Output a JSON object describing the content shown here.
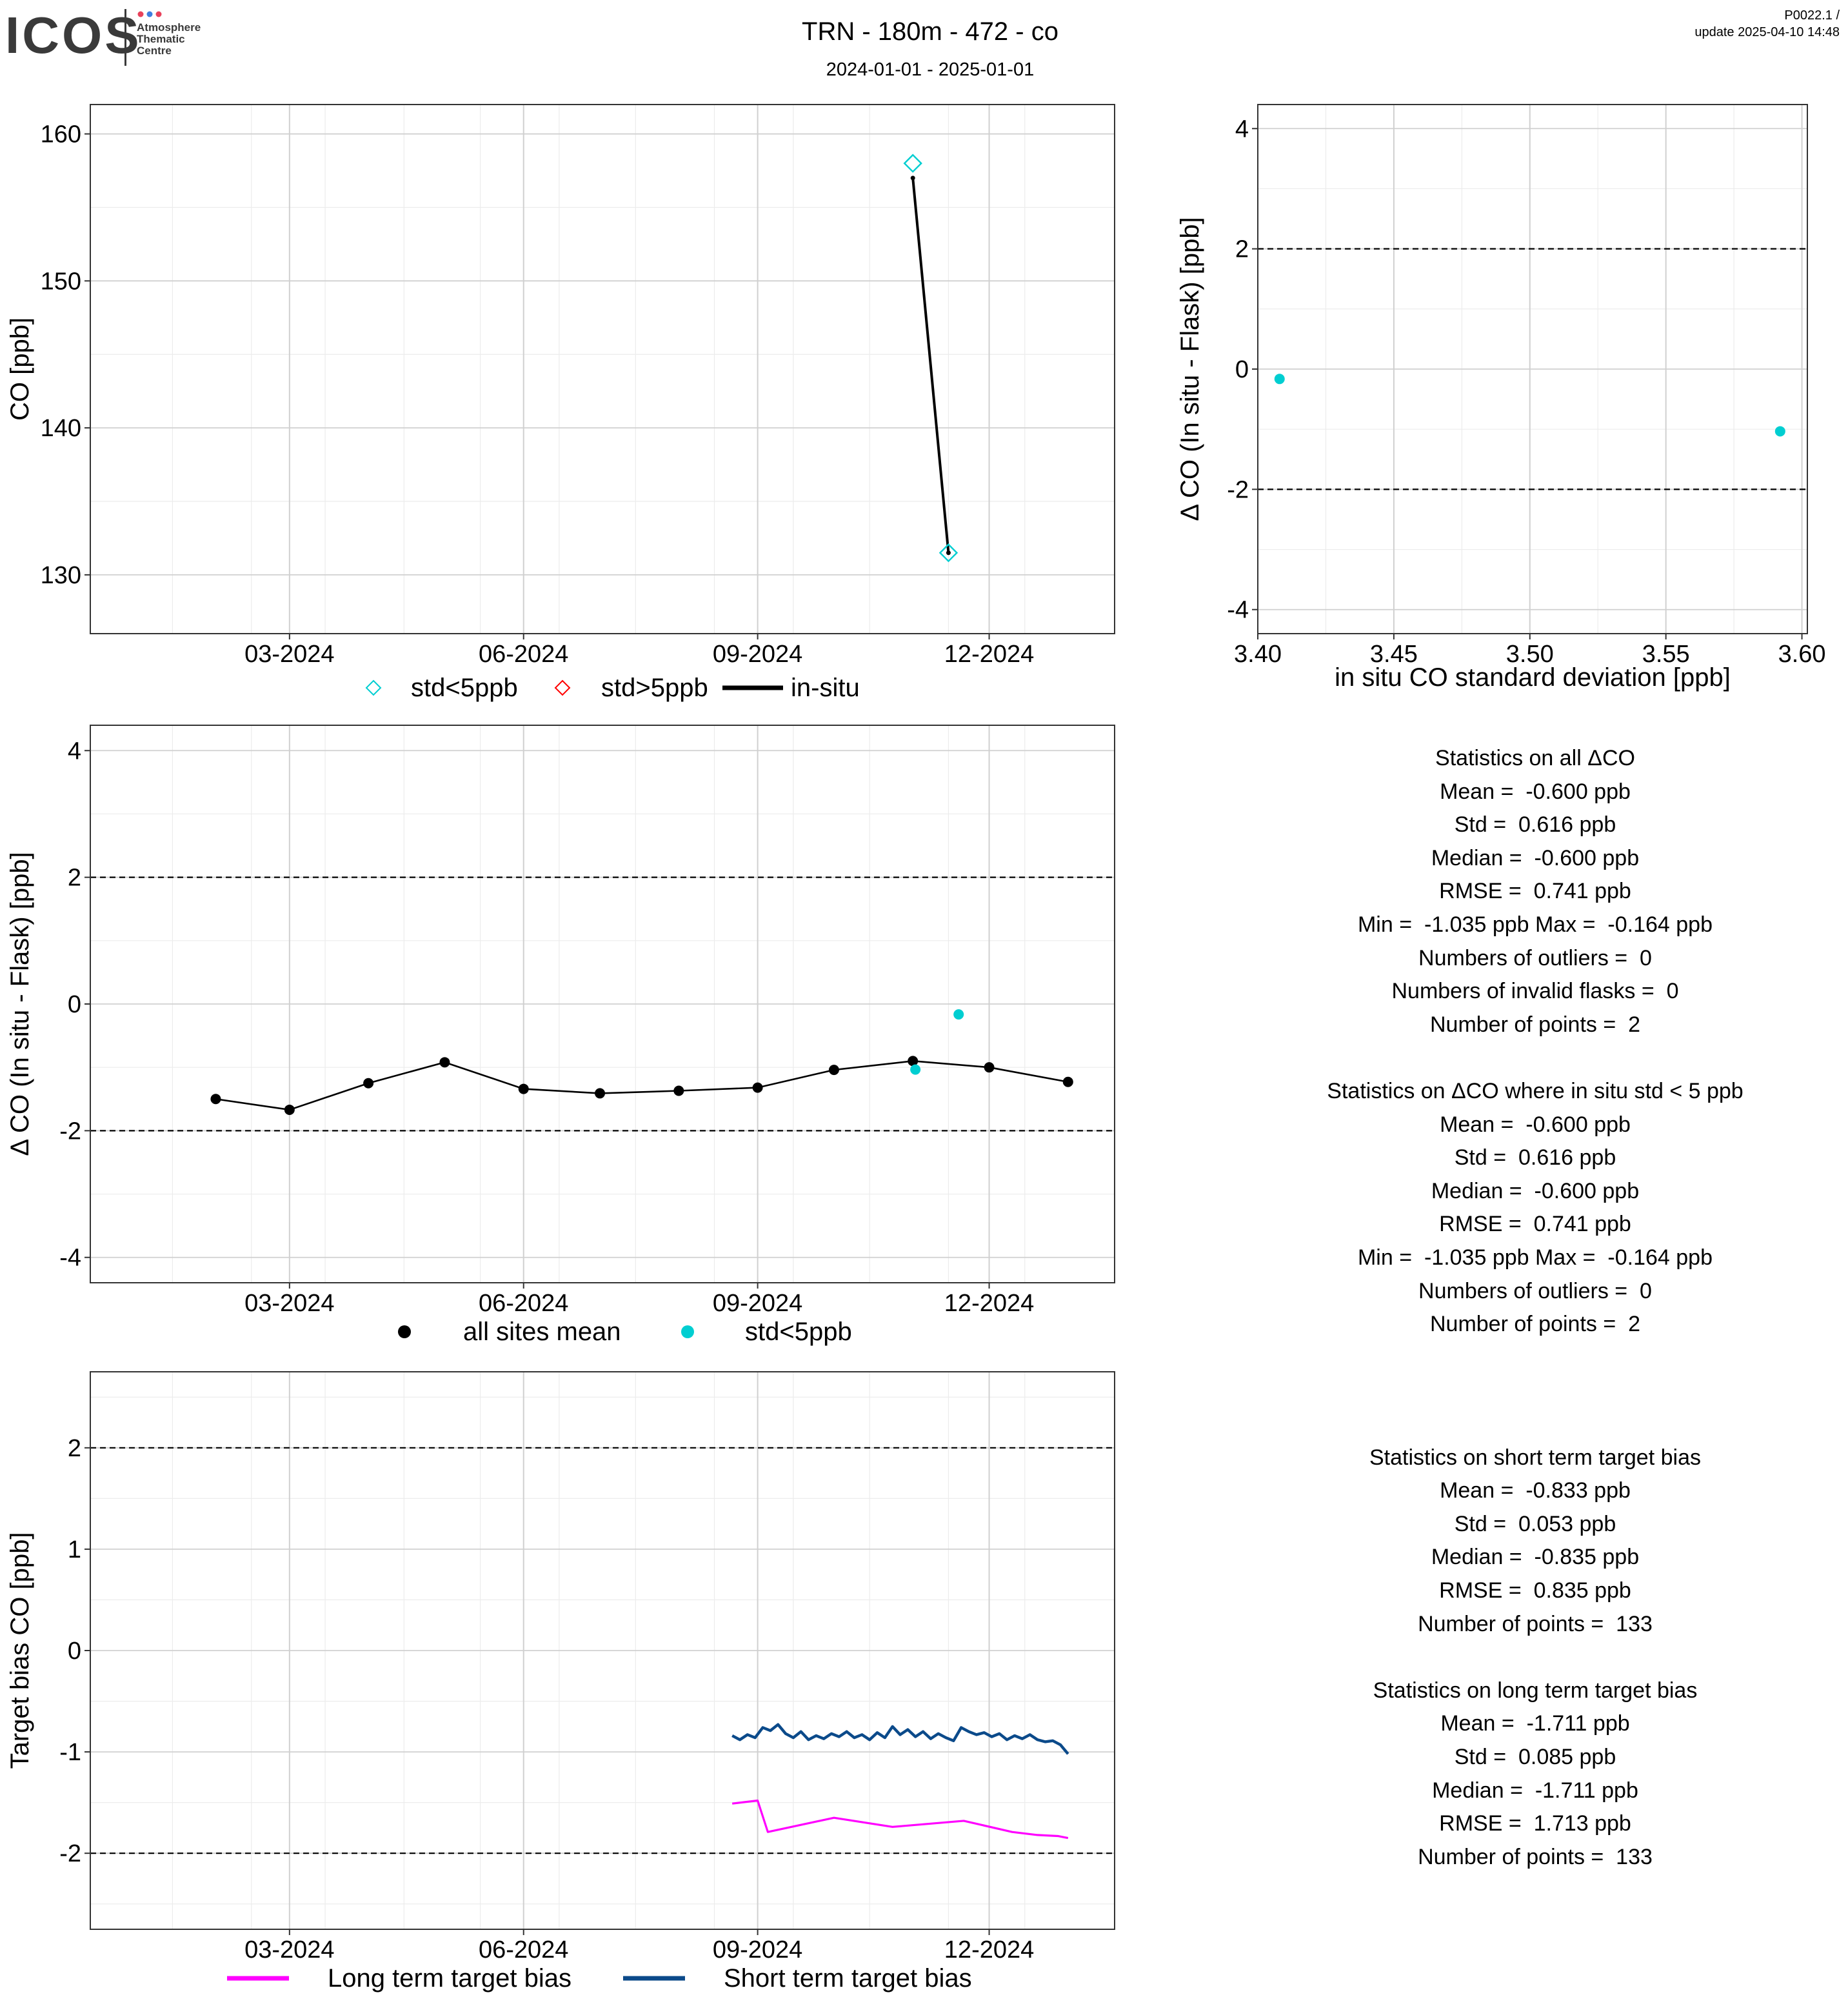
{
  "header": {
    "logo_word": "ICOS",
    "logo_sub": [
      "Atmosphere",
      "Thematic",
      "Centre"
    ],
    "title": "TRN - 180m - 472 - co",
    "subtitle": "2024-01-01 - 2025-01-01",
    "version": "P0022.1 /",
    "update": "update  2025-04-10 14:48"
  },
  "colors": {
    "insitu": "#000000",
    "std_lt5": "#00CED1",
    "std_gt5": "#FF0000",
    "long_term": "#FF00FF",
    "short_term": "#0B4A8A",
    "grid_major": "#d0d0d0",
    "grid_minor": "#ececec"
  },
  "chart_data": [
    {
      "id": "timeseries",
      "type": "line",
      "ylabel": "CO [ppb]",
      "xlabel": "",
      "ylim": [
        126,
        162
      ],
      "yticks": [
        130,
        140,
        150,
        160
      ],
      "x_range": [
        "2024-01-01",
        "2025-01-01"
      ],
      "x_ticks": [
        {
          "date": "2024-03-01",
          "label": "03-2024"
        },
        {
          "date": "2024-06-01",
          "label": "06-2024"
        },
        {
          "date": "2024-09-01",
          "label": "09-2024"
        },
        {
          "date": "2024-12-01",
          "label": "12-2024"
        }
      ],
      "grid": true,
      "legend_position": "bottom",
      "series": [
        {
          "name": "std<5ppb",
          "kind": "diamond",
          "color": "#00CED1",
          "points": [
            {
              "x": "2024-11-01",
              "y": 158.0
            },
            {
              "x": "2024-11-15",
              "y": 131.5
            }
          ]
        },
        {
          "name": "std>5ppb",
          "kind": "diamond",
          "color": "#FF0000",
          "points": []
        },
        {
          "name": "in-situ",
          "kind": "line",
          "color": "#000000",
          "points": [
            {
              "x": "2024-11-01",
              "y": 157.0
            },
            {
              "x": "2024-11-15",
              "y": 131.5
            }
          ]
        }
      ]
    },
    {
      "id": "scatter",
      "type": "scatter",
      "xlabel": "in situ CO standard deviation [ppb]",
      "ylabel": "Δ CO (In situ - Flask) [ppb]",
      "xlim": [
        3.4,
        3.602
      ],
      "ylim": [
        -4.4,
        4.4
      ],
      "xticks": [
        3.4,
        3.45,
        3.5,
        3.55,
        3.6
      ],
      "xtick_labels": [
        "3.40",
        "3.45",
        "3.50",
        "3.55",
        "3.60"
      ],
      "yticks": [
        -4,
        -2,
        0,
        2,
        4
      ],
      "hlines": [
        2,
        -2
      ],
      "grid": true,
      "points": [
        {
          "x": 3.408,
          "y": -0.164
        },
        {
          "x": 3.592,
          "y": -1.035
        }
      ]
    },
    {
      "id": "delta",
      "type": "line",
      "ylabel": "Δ CO (In situ - Flask) [ppb]",
      "xlabel": "",
      "ylim": [
        -4.4,
        4.4
      ],
      "yticks": [
        -4,
        -2,
        0,
        2,
        4
      ],
      "hlines": [
        2,
        -2
      ],
      "x_range": [
        "2024-01-01",
        "2025-01-01"
      ],
      "x_ticks": [
        {
          "date": "2024-03-01",
          "label": "03-2024"
        },
        {
          "date": "2024-06-01",
          "label": "06-2024"
        },
        {
          "date": "2024-09-01",
          "label": "09-2024"
        },
        {
          "date": "2024-12-01",
          "label": "12-2024"
        }
      ],
      "grid": true,
      "legend_position": "bottom",
      "series": [
        {
          "name": "all sites mean",
          "color": "#000000",
          "points": [
            {
              "x": "2024-02-01",
              "y": -1.5
            },
            {
              "x": "2024-03-01",
              "y": -1.67
            },
            {
              "x": "2024-04-01",
              "y": -1.25
            },
            {
              "x": "2024-05-01",
              "y": -0.92
            },
            {
              "x": "2024-06-01",
              "y": -1.34
            },
            {
              "x": "2024-07-01",
              "y": -1.41
            },
            {
              "x": "2024-08-01",
              "y": -1.37
            },
            {
              "x": "2024-09-01",
              "y": -1.32
            },
            {
              "x": "2024-10-01",
              "y": -1.04
            },
            {
              "x": "2024-11-01",
              "y": -0.9
            },
            {
              "x": "2024-12-01",
              "y": -1.0
            },
            {
              "x": "2025-01-01",
              "y": -1.23
            }
          ]
        },
        {
          "name": "std<5ppb",
          "color": "#00CED1",
          "points": [
            {
              "x": "2024-11-02",
              "y": -1.035
            },
            {
              "x": "2024-11-19",
              "y": -0.164
            }
          ]
        }
      ]
    },
    {
      "id": "target",
      "type": "line",
      "ylabel": "Target bias CO [ppb]",
      "xlabel": "",
      "ylim": [
        -2.75,
        2.75
      ],
      "yticks": [
        -2,
        -1,
        0,
        1,
        2
      ],
      "hlines": [
        2,
        -2
      ],
      "x_range": [
        "2024-01-01",
        "2025-01-01"
      ],
      "x_ticks": [
        {
          "date": "2024-03-01",
          "label": "03-2024"
        },
        {
          "date": "2024-06-01",
          "label": "06-2024"
        },
        {
          "date": "2024-09-01",
          "label": "09-2024"
        },
        {
          "date": "2024-12-01",
          "label": "12-2024"
        }
      ],
      "grid": true,
      "legend_position": "bottom",
      "series": [
        {
          "name": "Long term target bias",
          "color": "#FF00FF",
          "points": [
            {
              "x": "2024-08-22",
              "y": -1.51
            },
            {
              "x": "2024-09-01",
              "y": -1.48
            },
            {
              "x": "2024-09-05",
              "y": -1.79
            },
            {
              "x": "2024-10-01",
              "y": -1.65
            },
            {
              "x": "2024-10-24",
              "y": -1.74
            },
            {
              "x": "2024-11-21",
              "y": -1.68
            },
            {
              "x": "2024-12-10",
              "y": -1.79
            },
            {
              "x": "2024-12-20",
              "y": -1.82
            },
            {
              "x": "2024-12-28",
              "y": -1.83
            },
            {
              "x": "2025-01-01",
              "y": -1.85
            }
          ]
        },
        {
          "name": "Short term target bias",
          "color": "#0B4A8A",
          "points": [
            {
              "x": "2024-08-22",
              "y": -0.84
            },
            {
              "x": "2024-08-25",
              "y": -0.88
            },
            {
              "x": "2024-08-28",
              "y": -0.83
            },
            {
              "x": "2024-08-31",
              "y": -0.86
            },
            {
              "x": "2024-09-03",
              "y": -0.76
            },
            {
              "x": "2024-09-06",
              "y": -0.79
            },
            {
              "x": "2024-09-09",
              "y": -0.73
            },
            {
              "x": "2024-09-12",
              "y": -0.82
            },
            {
              "x": "2024-09-15",
              "y": -0.86
            },
            {
              "x": "2024-09-18",
              "y": -0.8
            },
            {
              "x": "2024-09-21",
              "y": -0.88
            },
            {
              "x": "2024-09-24",
              "y": -0.84
            },
            {
              "x": "2024-09-27",
              "y": -0.87
            },
            {
              "x": "2024-09-30",
              "y": -0.82
            },
            {
              "x": "2024-10-03",
              "y": -0.85
            },
            {
              "x": "2024-10-06",
              "y": -0.8
            },
            {
              "x": "2024-10-09",
              "y": -0.86
            },
            {
              "x": "2024-10-12",
              "y": -0.83
            },
            {
              "x": "2024-10-15",
              "y": -0.88
            },
            {
              "x": "2024-10-18",
              "y": -0.81
            },
            {
              "x": "2024-10-21",
              "y": -0.86
            },
            {
              "x": "2024-10-24",
              "y": -0.75
            },
            {
              "x": "2024-10-27",
              "y": -0.83
            },
            {
              "x": "2024-10-30",
              "y": -0.78
            },
            {
              "x": "2024-11-02",
              "y": -0.85
            },
            {
              "x": "2024-11-05",
              "y": -0.8
            },
            {
              "x": "2024-11-08",
              "y": -0.87
            },
            {
              "x": "2024-11-11",
              "y": -0.82
            },
            {
              "x": "2024-11-14",
              "y": -0.86
            },
            {
              "x": "2024-11-17",
              "y": -0.89
            },
            {
              "x": "2024-11-20",
              "y": -0.76
            },
            {
              "x": "2024-11-23",
              "y": -0.8
            },
            {
              "x": "2024-11-26",
              "y": -0.83
            },
            {
              "x": "2024-11-29",
              "y": -0.81
            },
            {
              "x": "2024-12-02",
              "y": -0.85
            },
            {
              "x": "2024-12-05",
              "y": -0.82
            },
            {
              "x": "2024-12-08",
              "y": -0.88
            },
            {
              "x": "2024-12-11",
              "y": -0.84
            },
            {
              "x": "2024-12-14",
              "y": -0.87
            },
            {
              "x": "2024-12-17",
              "y": -0.83
            },
            {
              "x": "2024-12-20",
              "y": -0.88
            },
            {
              "x": "2024-12-23",
              "y": -0.9
            },
            {
              "x": "2024-12-26",
              "y": -0.89
            },
            {
              "x": "2024-12-29",
              "y": -0.93
            },
            {
              "x": "2025-01-01",
              "y": -1.02
            }
          ]
        }
      ]
    }
  ],
  "stats": {
    "all": {
      "title": "Statistics on all ΔCO",
      "lines": [
        "Mean =  -0.600 ppb",
        "Std =  0.616 ppb",
        "Median =  -0.600 ppb",
        "RMSE =  0.741 ppb",
        "Min =  -1.035 ppb Max =  -0.164 ppb",
        "Numbers of outliers =  0",
        "Numbers of invalid flasks =  0",
        "Number of points =  2"
      ]
    },
    "std5": {
      "title": "Statistics on ΔCO where in situ std < 5 ppb",
      "lines": [
        "Mean =  -0.600 ppb",
        "Std =  0.616 ppb",
        "Median =  -0.600 ppb",
        "RMSE =  0.741 ppb",
        "Min =  -1.035 ppb Max =  -0.164 ppb",
        "Numbers of outliers =  0",
        "Number of points =  2"
      ]
    },
    "short_term": {
      "title": "Statistics on short term target bias",
      "lines": [
        "Mean =  -0.833 ppb",
        "Std =  0.053 ppb",
        "Median =  -0.835 ppb",
        "RMSE =  0.835 ppb",
        "Number of points =  133"
      ]
    },
    "long_term": {
      "title": "Statistics on long term target bias",
      "lines": [
        "Mean =  -1.711 ppb",
        "Std =  0.085 ppb",
        "Median =  -1.711 ppb",
        "RMSE =  1.713 ppb",
        "Number of points =  133"
      ]
    }
  }
}
